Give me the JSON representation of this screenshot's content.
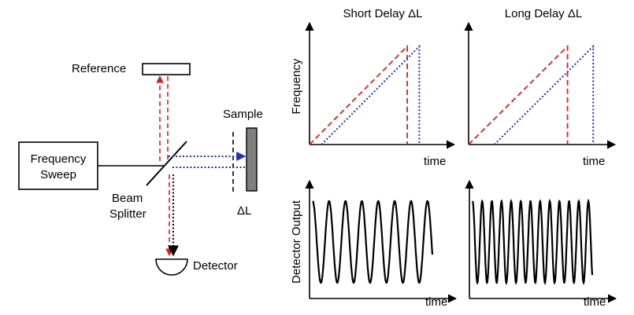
{
  "setup": {
    "frequency_sweep_line1": "Frequency",
    "frequency_sweep_line2": "Sweep",
    "reference": "Reference",
    "sample": "Sample",
    "beam_splitter_line1": "Beam",
    "beam_splitter_line2": "Splitter",
    "delta_l": "ΔL",
    "detector": "Detector"
  },
  "panels": {
    "short_title": "Short Delay ΔL",
    "long_title": "Long Delay ΔL",
    "freq_ylabel": "Frequency",
    "detector_ylabel": "Detector Output",
    "xlabel": "time"
  },
  "colors": {
    "reference_beam": "#e31a1c",
    "sample_beam": "#1f2fbf",
    "ink": "#000000",
    "sample_fill": "#7f7f7f"
  },
  "chart_data": [
    {
      "type": "line",
      "title": "Short Delay ΔL",
      "xlabel": "time",
      "ylabel": "Frequency",
      "series": [
        {
          "style": "dashed-red",
          "x": [
            0,
            0.73,
            0.73
          ],
          "y": [
            0,
            1,
            0
          ]
        },
        {
          "style": "dotted-blue",
          "x": [
            0.09,
            0.82,
            0.82
          ],
          "y": [
            0,
            1,
            0
          ]
        }
      ]
    },
    {
      "type": "line",
      "title": "Long Delay ΔL",
      "xlabel": "time",
      "ylabel": "Frequency",
      "series": [
        {
          "style": "dashed-red",
          "x": [
            0,
            0.73,
            0.73
          ],
          "y": [
            0,
            1,
            0
          ]
        },
        {
          "style": "dotted-blue",
          "x": [
            0.19,
            0.92,
            0.92
          ],
          "y": [
            0,
            1,
            0
          ]
        }
      ]
    },
    {
      "type": "line",
      "xlabel": "time",
      "ylabel": "Detector Output",
      "signal": "sinusoid",
      "cycles": 7.3,
      "phase": 0.25
    },
    {
      "type": "line",
      "xlabel": "time",
      "signal": "sinusoid",
      "cycles": 12.4,
      "phase": 0.25
    }
  ]
}
